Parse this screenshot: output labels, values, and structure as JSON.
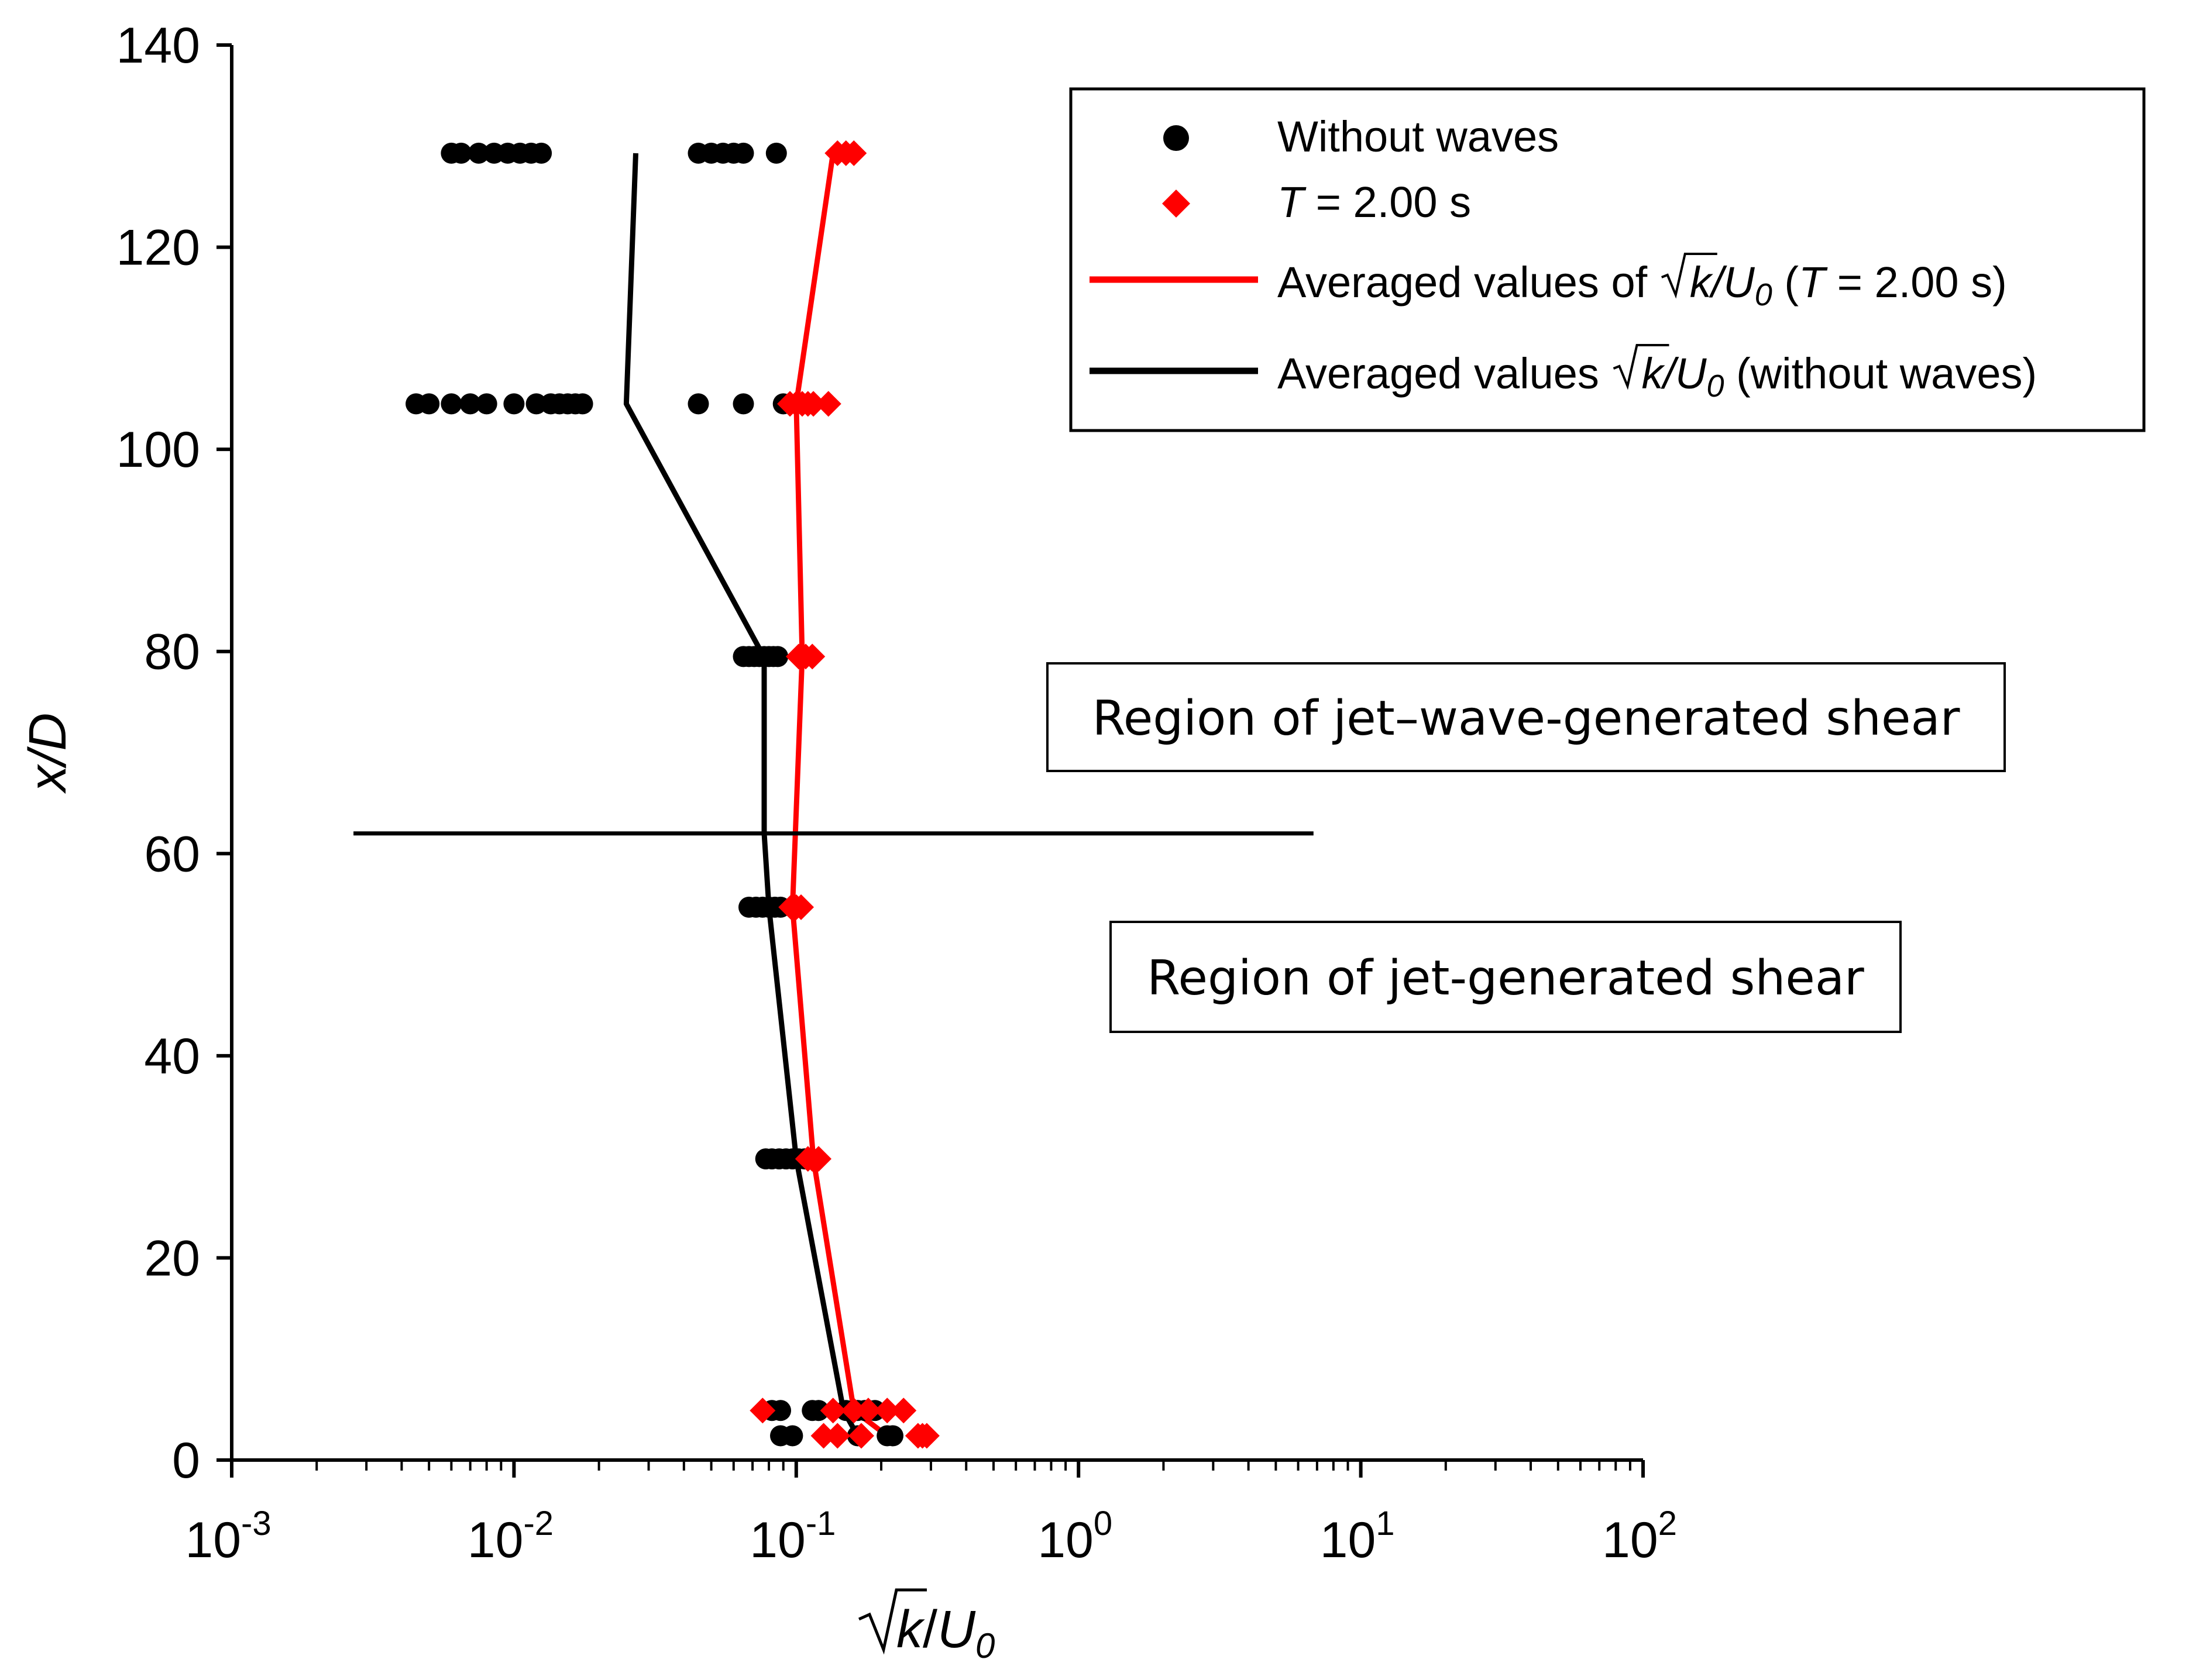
{
  "chart_data": {
    "type": "scatter",
    "title": "",
    "xlabel": "√k/U0",
    "ylabel": "x/D",
    "xscale": "log",
    "xlim": [
      0.001,
      100
    ],
    "ylim": [
      0,
      140
    ],
    "y_ticks": [
      0,
      20,
      40,
      60,
      80,
      100,
      120,
      140
    ],
    "x_ticks": [
      {
        "value": 0.001,
        "base": "10",
        "exp": "-3"
      },
      {
        "value": 0.01,
        "base": "10",
        "exp": "-2"
      },
      {
        "value": 0.1,
        "base": "10",
        "exp": "-1"
      },
      {
        "value": 1,
        "base": "10",
        "exp": "0"
      },
      {
        "value": 10,
        "base": "10",
        "exp": "1"
      },
      {
        "value": 100,
        "base": "10",
        "exp": "2"
      }
    ],
    "legend": {
      "placement": "top-right",
      "entries": [
        {
          "label": "Without waves",
          "marker": "circle",
          "color": "#000000"
        },
        {
          "label_italic": "T",
          "label": " = 2.00 s",
          "marker": "diamond",
          "color": "#ff0000"
        },
        {
          "label_pre": "Averaged values of ",
          "label_k": "k",
          "label_u": "/U",
          "label_sub": "0",
          "label_post_open": " (",
          "label_post_italic": "T",
          "label_post": " = 2.00 s)",
          "marker": "line",
          "color": "#ff0000"
        },
        {
          "label_pre": "Averaged values ",
          "label_k": "k",
          "label_u": "/U",
          "label_sub": "0",
          "label_post": " (without waves)",
          "marker": "line",
          "color": "#000000"
        }
      ]
    },
    "series": [
      {
        "name": "Without waves",
        "color": "#000000",
        "marker": "circle",
        "points": [
          {
            "y": 129.3,
            "x": [
              0.006,
              0.0065,
              0.0075,
              0.0085,
              0.0095,
              0.0105,
              0.0115,
              0.0125,
              0.045,
              0.05,
              0.055,
              0.06,
              0.065,
              0.085
            ]
          },
          {
            "y": 104.5,
            "x": [
              0.0045,
              0.005,
              0.006,
              0.007,
              0.008,
              0.01,
              0.012,
              0.0135,
              0.0145,
              0.0155,
              0.0165,
              0.0175,
              0.045,
              0.065,
              0.09
            ]
          },
          {
            "y": 79.5,
            "x": [
              0.065,
              0.068,
              0.071,
              0.074,
              0.077,
              0.08,
              0.083,
              0.086
            ]
          },
          {
            "y": 54.7,
            "x": [
              0.068,
              0.072,
              0.076,
              0.08,
              0.084,
              0.088
            ]
          },
          {
            "y": 29.8,
            "x": [
              0.078,
              0.082,
              0.087,
              0.092,
              0.097,
              0.102,
              0.107
            ]
          },
          {
            "y": 4.9,
            "x": [
              0.082,
              0.088,
              0.114,
              0.12,
              0.15,
              0.165,
              0.175,
              0.18,
              0.19
            ]
          },
          {
            "y": 2.4,
            "x": [
              0.088,
              0.097,
              0.165,
              0.21,
              0.22
            ]
          }
        ]
      },
      {
        "name": "T = 2.00 s",
        "color": "#ff0000",
        "marker": "diamond",
        "points": [
          {
            "y": 129.3,
            "x": [
              0.14,
              0.15,
              0.16
            ]
          },
          {
            "y": 104.5,
            "x": [
              0.095,
              0.1,
              0.105,
              0.11,
              0.115,
              0.13
            ]
          },
          {
            "y": 79.5,
            "x": [
              0.102,
              0.108,
              0.114
            ]
          },
          {
            "y": 54.7,
            "x": [
              0.096,
              0.1,
              0.104
            ]
          },
          {
            "y": 29.8,
            "x": [
              0.11,
              0.114,
              0.12
            ]
          },
          {
            "y": 4.9,
            "x": [
              0.076,
              0.135,
              0.16,
              0.18,
              0.21,
              0.24
            ]
          },
          {
            "y": 2.4,
            "x": [
              0.125,
              0.14,
              0.17,
              0.27,
              0.28,
              0.29
            ]
          }
        ]
      },
      {
        "name": "Averaged values of √k/U0 (T = 2.00 s)",
        "type": "line",
        "color": "#ff0000",
        "x": [
          0.21,
          0.16,
          0.115,
          0.097,
          0.105,
          0.1,
          0.135
        ],
        "y": [
          2.4,
          4.9,
          29.8,
          54.7,
          79.5,
          104.5,
          129.3
        ]
      },
      {
        "name": "Averaged values √k/U0 (without waves)",
        "type": "line",
        "color": "#000000",
        "x": [
          0.165,
          0.147,
          0.1,
          0.08,
          0.077,
          0.077,
          0.075,
          0.025,
          0.027
        ],
        "y": [
          2.4,
          4.9,
          29.8,
          54.7,
          62,
          79.5,
          80,
          104.5,
          129.3
        ]
      },
      {
        "name": "boundary",
        "type": "line",
        "color": "#000000",
        "x": [
          0.0027,
          6.8
        ],
        "y": [
          62,
          62
        ]
      }
    ],
    "annotations": [
      {
        "text": "Region of jet–wave-generated shear"
      },
      {
        "text": "Region of jet-generated shear"
      }
    ]
  }
}
